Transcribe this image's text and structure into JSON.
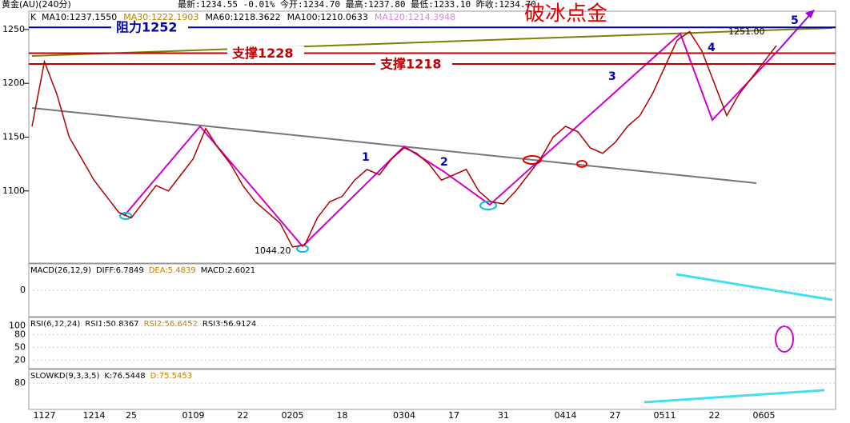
{
  "header": {
    "symbol": "黄金(AU)(240分)",
    "quote": "最新:1234.55  -0.01%  今开:1234.70  最高:1237.80  最低:1233.10  昨收:1234.70"
  },
  "chart_data": {
    "type": "line",
    "legend": [
      {
        "text": "MA10:1237.1550",
        "color": "#000000"
      },
      {
        "text": "MA30:1222.1903",
        "color": "#c08000"
      },
      {
        "text": "MA60:1218.3622",
        "color": "#000000"
      },
      {
        "text": "MA100:1210.0633",
        "color": "#000000"
      },
      {
        "text": "MA120:1214.3948",
        "color": "#e080e0"
      }
    ],
    "categories": [
      null,
      "1127",
      null,
      null,
      null,
      "1214",
      null,
      null,
      "25",
      null,
      null,
      null,
      null,
      "0109",
      null,
      null,
      null,
      "22",
      null,
      null,
      null,
      "0205",
      null,
      null,
      null,
      "18",
      null,
      null,
      null,
      null,
      "0304",
      null,
      null,
      null,
      "17",
      null,
      null,
      null,
      "31",
      null,
      null,
      null,
      null,
      "0414",
      null,
      null,
      null,
      "27",
      null,
      null,
      null,
      "0511",
      null,
      null,
      null,
      "22",
      null,
      null,
      null,
      "0605",
      null
    ],
    "series": [
      {
        "name": "K",
        "color": "#b00000",
        "values": [
          1160,
          1220,
          1190,
          1150,
          1130,
          1110,
          1095,
          1080,
          1075,
          1090,
          1105,
          1100,
          1115,
          1130,
          1158,
          1140,
          1125,
          1105,
          1090,
          1080,
          1070,
          1048,
          1050,
          1075,
          1090,
          1095,
          1110,
          1120,
          1115,
          1130,
          1140,
          1135,
          1125,
          1110,
          1115,
          1120,
          1100,
          1090,
          1088,
          1100,
          1115,
          1130,
          1150,
          1160,
          1155,
          1140,
          1135,
          1145,
          1160,
          1170,
          1190,
          1215,
          1240,
          1248,
          1230,
          1200,
          1170,
          1190,
          1205,
          1220,
          1235
        ]
      }
    ],
    "ylim": [
      1033,
      1267
    ],
    "yticks": [
      1100,
      1150,
      1200,
      1250
    ],
    "levels": [
      {
        "label": "阻力1252",
        "value": 1252,
        "color": "#0000a0"
      },
      {
        "label": "支撑1228",
        "value": 1228,
        "color": "#c00000"
      },
      {
        "label": "支撑1218",
        "value": 1218,
        "color": "#c00000"
      }
    ],
    "annotations": {
      "title": "破冰点金",
      "low": "1044.20",
      "high": "1251.00",
      "waves": [
        "1",
        "2",
        "3",
        "4",
        "5"
      ]
    }
  },
  "indicators": [
    {
      "legend": [
        {
          "text": "MACD(26,12,9)",
          "color": "#000000"
        },
        {
          "text": "DIFF:6.7849",
          "color": "#000000"
        },
        {
          "text": "DEA:5.4839",
          "color": "#c08000"
        },
        {
          "text": "MACD:2.6021",
          "color": "#000000"
        }
      ],
      "ylim": [
        -30,
        30
      ],
      "yticks": [
        0
      ]
    },
    {
      "legend": [
        {
          "text": "RSI(6,12,24)",
          "color": "#000000"
        },
        {
          "text": "RSI1:50.8367",
          "color": "#000000"
        },
        {
          "text": "RSI2:56.6452",
          "color": "#c08000"
        },
        {
          "text": "RSI3:56.9124",
          "color": "#000000"
        }
      ],
      "ylim": [
        0,
        120
      ],
      "yticks": [
        20,
        50,
        80,
        100
      ]
    },
    {
      "legend": [
        {
          "text": "SLOWKD(9,3,3,5)",
          "color": "#000000"
        },
        {
          "text": "K:76.5448",
          "color": "#000000"
        },
        {
          "text": "D:75.5453",
          "color": "#c08000"
        }
      ],
      "ylim": [
        0,
        110
      ],
      "yticks": [
        80
      ]
    }
  ]
}
